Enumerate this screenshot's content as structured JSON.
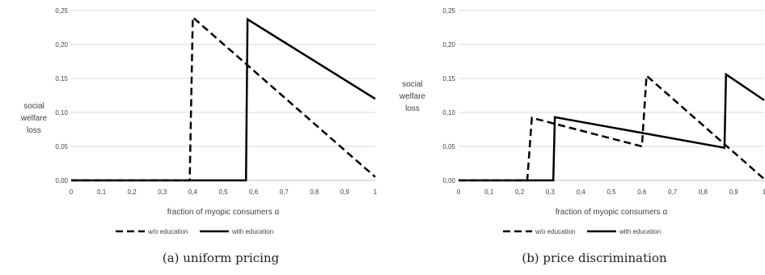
{
  "chart_data": [
    {
      "type": "line",
      "subtitle": "(a) uniform pricing",
      "xlabel": "fraction of myopic consumers α",
      "ylabel": [
        "social",
        "welfare",
        "loss"
      ],
      "xlim": [
        0,
        1
      ],
      "ylim": [
        0,
        0.25
      ],
      "x_ticks": [
        "0",
        "0,1",
        "0,2",
        "0,3",
        "0,4",
        "0,5",
        "0,6",
        "0,7",
        "0,8",
        "0,9",
        "1"
      ],
      "y_ticks": [
        "0,00",
        "0,05",
        "0,10",
        "0,15",
        "0,20",
        "0,25"
      ],
      "grid": true,
      "legend": "bottom",
      "series": [
        {
          "name": "w/o education",
          "style": "dashed",
          "color": "#000000",
          "points": [
            [
              0,
              0
            ],
            [
              0.39,
              0
            ],
            [
              0.4,
              0.24
            ],
            [
              1,
              0.005
            ]
          ]
        },
        {
          "name": "with education",
          "style": "solid",
          "color": "#000000",
          "points": [
            [
              0,
              0
            ],
            [
              0.575,
              0
            ],
            [
              0.58,
              0.237
            ],
            [
              1,
              0.12
            ]
          ]
        }
      ]
    },
    {
      "type": "line",
      "subtitle": "(b) price discrimination",
      "xlabel": "fraction of myopic consumers α",
      "ylabel": [
        "social",
        "welfare",
        "loss"
      ],
      "xlim": [
        0,
        1
      ],
      "ylim": [
        0,
        0.25
      ],
      "x_ticks": [
        "0",
        "0,1",
        "0,2",
        "0,3",
        "0,4",
        "0,5",
        "0,6",
        "0,7",
        "0,8",
        "0,9",
        "1"
      ],
      "y_ticks": [
        "0,00",
        "0,05",
        "0,10",
        "0,15",
        "0,20",
        "0,25"
      ],
      "grid": true,
      "legend": "bottom",
      "series": [
        {
          "name": "w/o education",
          "style": "dashed",
          "color": "#000000",
          "points": [
            [
              0,
              0
            ],
            [
              0.225,
              0
            ],
            [
              0.24,
              0.092
            ],
            [
              0.6,
              0.05
            ],
            [
              0.615,
              0.154
            ],
            [
              1,
              0.002
            ]
          ]
        },
        {
          "name": "with education",
          "style": "solid",
          "color": "#000000",
          "points": [
            [
              0,
              0
            ],
            [
              0.31,
              0
            ],
            [
              0.315,
              0.093
            ],
            [
              0.87,
              0.048
            ],
            [
              0.875,
              0.156
            ],
            [
              1,
              0.118
            ]
          ]
        }
      ]
    }
  ]
}
